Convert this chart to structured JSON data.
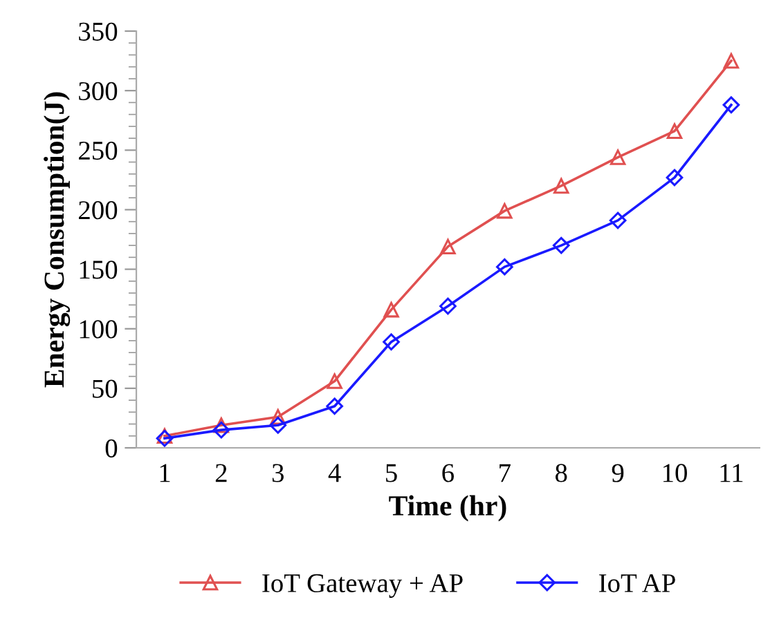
{
  "chart_data": {
    "type": "line",
    "xlabel": "Time (hr)",
    "ylabel": "Energy Consumption(J)",
    "categories": [
      "1",
      "2",
      "3",
      "4",
      "5",
      "6",
      "7",
      "8",
      "9",
      "10",
      "11"
    ],
    "series": [
      {
        "name": "IoT Gateway + AP",
        "color": "#e05050",
        "marker": "triangle",
        "values": [
          10,
          19,
          26,
          56,
          116,
          169,
          199,
          220,
          244,
          266,
          325
        ]
      },
      {
        "name": "IoT AP",
        "color": "#1a1aff",
        "marker": "diamond",
        "values": [
          8,
          15,
          19,
          35,
          89,
          119,
          152,
          170,
          191,
          227,
          288
        ]
      }
    ],
    "ylim": [
      0,
      350
    ],
    "yticks": [
      0,
      50,
      100,
      150,
      200,
      250,
      300,
      350
    ],
    "grid": false,
    "legend": "bottom",
    "line_style": "solid"
  }
}
